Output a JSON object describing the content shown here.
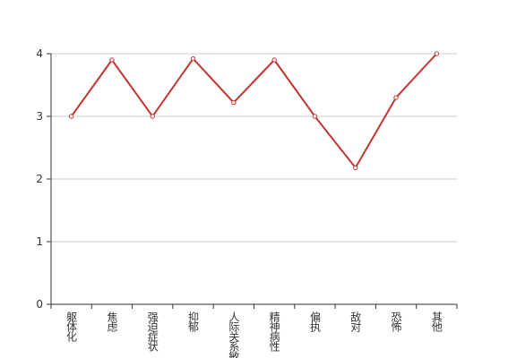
{
  "chart_data": {
    "type": "line",
    "categories": [
      "躯体化",
      "焦虑",
      "强迫症状",
      "抑郁",
      "人际关系敏感",
      "精神病性",
      "偏执",
      "敌对",
      "恐怖",
      "其他"
    ],
    "series": [
      {
        "color": "#c23531",
        "values": [
          3.0,
          3.9,
          3.0,
          3.92,
          3.22,
          3.9,
          3.0,
          2.18,
          3.3,
          4.0
        ]
      }
    ],
    "ylim": [
      0,
      4
    ],
    "yticks": [
      0,
      1,
      2,
      3,
      4
    ],
    "grid": true
  }
}
